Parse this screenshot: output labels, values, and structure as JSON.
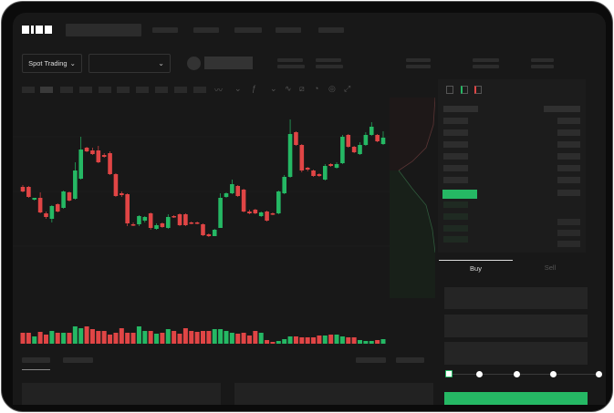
{
  "brand": {
    "logo": "OKX"
  },
  "toolbar": {
    "mode_label": "Spot Trading",
    "pair_select": "",
    "icons": [
      "line-type-icon",
      "chevron-down-icon",
      "indicator-icon",
      "chevron-down-icon",
      "trend-line-icon",
      "ruler-icon",
      "gauge-icon",
      "target-icon",
      "expand-icon"
    ]
  },
  "trade": {
    "buy_tab": "Buy",
    "sell_tab": "Sell",
    "leverage_steps": 5,
    "selected_step": 0
  },
  "colors": {
    "up": "#25b864",
    "down": "#e04545",
    "background": "#181818"
  },
  "chart_data": {
    "type": "candlestick",
    "candles": [
      [
        97,
        92,
        99,
        91
      ],
      [
        97,
        86,
        98,
        85
      ],
      [
        83,
        85,
        85,
        82
      ],
      [
        85,
        69,
        91,
        68
      ],
      [
        68,
        64,
        70,
        62
      ],
      [
        62,
        76,
        58,
        77
      ],
      [
        78,
        70,
        79,
        69
      ],
      [
        74,
        92,
        73,
        93
      ],
      [
        91,
        82,
        92,
        81
      ],
      [
        84,
        115,
        83,
        124
      ],
      [
        106,
        138,
        105,
        152
      ],
      [
        140,
        136,
        141,
        135
      ],
      [
        137,
        133,
        140,
        132
      ],
      [
        137,
        124,
        142,
        123
      ],
      [
        132,
        130,
        134,
        129
      ],
      [
        134,
        111,
        136,
        110
      ],
      [
        111,
        87,
        112,
        86
      ],
      [
        90,
        88,
        92,
        86
      ],
      [
        89,
        57,
        90,
        54
      ],
      [
        56,
        55,
        58,
        54
      ],
      [
        56,
        65,
        54,
        66
      ],
      [
        60,
        64,
        58,
        65
      ],
      [
        68,
        52,
        69,
        50
      ],
      [
        51,
        55,
        50,
        57
      ],
      [
        57,
        53,
        58,
        52
      ],
      [
        52,
        64,
        51,
        67
      ],
      [
        65,
        64,
        66,
        63
      ],
      [
        67,
        55,
        68,
        54
      ],
      [
        67,
        55,
        68,
        54
      ],
      [
        58,
        57,
        59,
        56
      ],
      [
        58,
        57,
        59,
        56
      ],
      [
        56,
        44,
        57,
        43
      ],
      [
        45,
        43,
        46,
        42
      ],
      [
        43,
        50,
        43,
        51
      ],
      [
        52,
        85,
        52,
        90
      ],
      [
        86,
        90,
        85,
        91
      ],
      [
        90,
        100,
        89,
        105
      ],
      [
        98,
        87,
        99,
        86
      ],
      [
        94,
        70,
        95,
        69
      ],
      [
        70,
        68,
        72,
        67
      ],
      [
        72,
        68,
        73,
        67
      ],
      [
        65,
        69,
        64,
        70
      ],
      [
        70,
        60,
        71,
        59
      ],
      [
        68,
        67,
        69,
        66
      ],
      [
        68,
        92,
        67,
        93
      ],
      [
        90,
        108,
        89,
        110
      ],
      [
        108,
        155,
        107,
        171
      ],
      [
        157,
        143,
        158,
        142
      ],
      [
        143,
        115,
        144,
        113
      ],
      [
        118,
        116,
        119,
        114
      ],
      [
        115,
        109,
        116,
        108
      ],
      [
        111,
        109,
        112,
        108
      ],
      [
        105,
        120,
        104,
        122
      ],
      [
        122,
        120,
        123,
        119
      ],
      [
        118,
        122,
        117,
        124
      ],
      [
        123,
        152,
        122,
        154
      ],
      [
        154,
        141,
        155,
        140
      ],
      [
        141,
        135,
        142,
        134
      ],
      [
        133,
        143,
        132,
        146
      ],
      [
        143,
        154,
        142,
        157
      ],
      [
        154,
        163,
        153,
        168
      ],
      [
        154,
        147,
        155,
        146
      ],
      [
        144,
        151,
        143,
        158
      ]
    ],
    "volume": [
      12,
      12,
      8,
      13,
      10,
      14,
      12,
      12,
      12,
      19,
      17,
      19,
      16,
      14,
      14,
      10,
      12,
      17,
      12,
      12,
      19,
      14,
      14,
      11,
      12,
      16,
      14,
      11,
      17,
      14,
      13,
      14,
      14,
      16,
      16,
      14,
      12,
      11,
      12,
      9,
      14,
      12,
      4,
      2,
      3,
      5,
      8,
      8,
      7,
      7,
      7,
      9,
      9,
      10,
      10,
      8,
      7,
      7,
      4,
      3,
      3,
      4,
      5
    ],
    "grid": true
  }
}
